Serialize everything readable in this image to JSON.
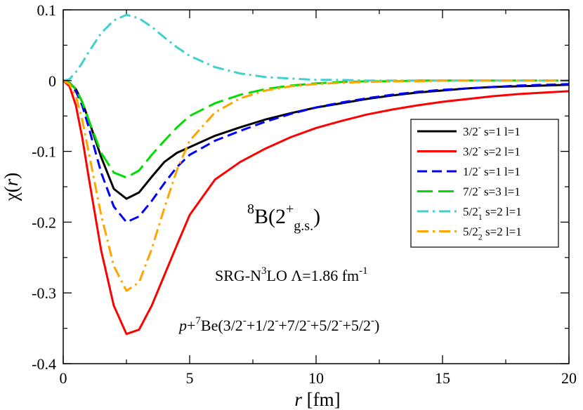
{
  "chart_data": {
    "type": "line",
    "xlabel": {
      "italic": "r",
      "rest": " [fm]"
    },
    "ylabel": {
      "chi": "χ(",
      "italic": "r",
      "close": ")"
    },
    "xlim": [
      0,
      20
    ],
    "ylim": [
      -0.4,
      0.1
    ],
    "xticks": [
      "0",
      "5",
      "10",
      "15",
      "20"
    ],
    "yticks": [
      "0.1",
      "0",
      "-0.1",
      "-0.2",
      "-0.3",
      "-0.4"
    ],
    "x": [
      0,
      0.25,
      0.5,
      0.75,
      1,
      1.5,
      2,
      2.5,
      3,
      3.5,
      4,
      4.5,
      5,
      6,
      7,
      8,
      9,
      10,
      11,
      12,
      13,
      14,
      15,
      16,
      17,
      18,
      19,
      20
    ],
    "series": [
      {
        "name": "3/2- s=1 l=1",
        "color": "#000000",
        "dash": "solid",
        "legend": {
          "j": "3/2",
          "sup": "-",
          "sub": "",
          "rest": " s=1 l=1"
        },
        "values": [
          0,
          -0.003,
          -0.012,
          -0.03,
          -0.055,
          -0.108,
          -0.153,
          -0.167,
          -0.158,
          -0.136,
          -0.115,
          -0.102,
          -0.094,
          -0.078,
          -0.066,
          -0.055,
          -0.046,
          -0.038,
          -0.032,
          -0.026,
          -0.021,
          -0.017,
          -0.014,
          -0.011,
          -0.009,
          -0.008,
          -0.007,
          -0.006
        ]
      },
      {
        "name": "3/2- s=2 l=1",
        "color": "#ff0000",
        "dash": "solid",
        "legend": {
          "j": "3/2",
          "sup": "-",
          "sub": "",
          "rest": " s=2 l=1"
        },
        "values": [
          0,
          -0.008,
          -0.035,
          -0.08,
          -0.135,
          -0.24,
          -0.318,
          -0.358,
          -0.352,
          -0.318,
          -0.275,
          -0.232,
          -0.19,
          -0.14,
          -0.115,
          -0.096,
          -0.08,
          -0.067,
          -0.057,
          -0.048,
          -0.041,
          -0.035,
          -0.03,
          -0.026,
          -0.022,
          -0.019,
          -0.017,
          -0.015
        ]
      },
      {
        "name": "1/2- s=1 l=1",
        "color": "#0000ff",
        "dash": "dash",
        "legend": {
          "j": "1/2",
          "sup": "-",
          "sub": "",
          "rest": " s=1 l=1"
        },
        "values": [
          0,
          -0.004,
          -0.015,
          -0.035,
          -0.065,
          -0.13,
          -0.178,
          -0.2,
          -0.192,
          -0.17,
          -0.145,
          -0.122,
          -0.105,
          -0.085,
          -0.071,
          -0.058,
          -0.047,
          -0.038,
          -0.031,
          -0.025,
          -0.02,
          -0.016,
          -0.013,
          -0.011,
          -0.009,
          -0.007,
          -0.006,
          -0.005
        ]
      },
      {
        "name": "7/2- s=3 l=1",
        "color": "#00dd00",
        "dash": "longdash",
        "legend": {
          "j": "7/2",
          "sup": "-",
          "sub": "",
          "rest": " s=3 l=1"
        },
        "values": [
          0,
          -0.003,
          -0.012,
          -0.03,
          -0.055,
          -0.102,
          -0.13,
          -0.137,
          -0.127,
          -0.105,
          -0.085,
          -0.066,
          -0.05,
          -0.032,
          -0.02,
          -0.012,
          -0.007,
          -0.004,
          -0.002,
          -0.001,
          -0.001,
          0,
          0,
          0,
          0,
          0,
          0,
          0
        ]
      },
      {
        "name": "5/2-1 s=2 l=1",
        "color": "#40d0d0",
        "dash": "dashdot",
        "legend": {
          "j": "5/2",
          "sup": "-",
          "sub": "1",
          "rest": " s=2 l=1"
        },
        "values": [
          0,
          0.002,
          0.012,
          0.025,
          0.04,
          0.067,
          0.085,
          0.093,
          0.088,
          0.076,
          0.061,
          0.047,
          0.035,
          0.019,
          0.01,
          0.005,
          0.003,
          0.001,
          0.001,
          0,
          0,
          0,
          0,
          0,
          0,
          0,
          0,
          0
        ]
      },
      {
        "name": "5/2-2 s=2 l=1",
        "color": "#ffa500",
        "dash": "dashdot",
        "legend": {
          "j": "5/2",
          "sup": "-",
          "sub": "2",
          "rest": " s=2 l=1"
        },
        "values": [
          0,
          -0.005,
          -0.022,
          -0.055,
          -0.1,
          -0.19,
          -0.262,
          -0.297,
          -0.285,
          -0.238,
          -0.18,
          -0.126,
          -0.085,
          -0.045,
          -0.025,
          -0.014,
          -0.008,
          -0.005,
          -0.003,
          -0.002,
          -0.001,
          -0.001,
          0,
          0,
          0,
          0,
          0,
          0
        ]
      }
    ],
    "legend_position": "right",
    "annotations": {
      "nucleus": {
        "sup_mass": "8",
        "element": "B(2",
        "sup_charge": "+",
        "sub_state": "g.s.",
        "close": ")"
      },
      "interaction": {
        "prefix": "SRG-N",
        "sup_order": "3",
        "middle": "LO  Λ=1.86 fm",
        "sup_unit": "-1"
      },
      "channel": {
        "p": "p",
        "plus": "+",
        "sup_mass": "7",
        "rest_open": "Be(",
        "states": [
          {
            "j": "3/2",
            "sup": "-"
          },
          {
            "j": "1/2",
            "sup": "-"
          },
          {
            "j": "7/2",
            "sup": "-"
          },
          {
            "j": "5/2",
            "sup": "-"
          },
          {
            "j": "5/2",
            "sup": "-"
          }
        ],
        "close": ")"
      }
    }
  }
}
